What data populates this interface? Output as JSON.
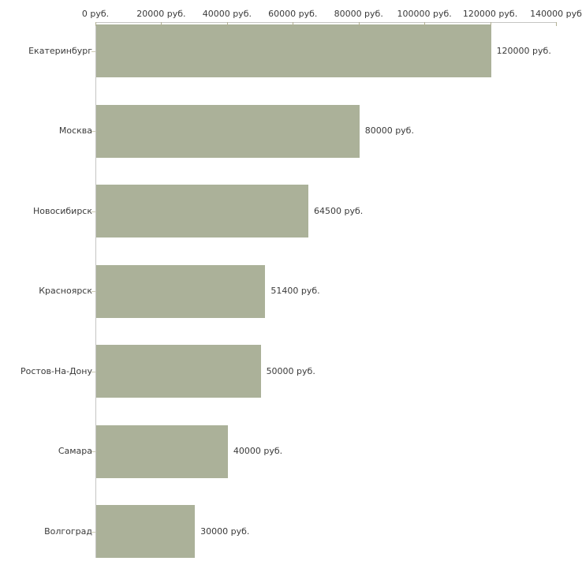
{
  "chart_data": {
    "type": "bar",
    "orientation": "horizontal",
    "title": "",
    "xlabel": "",
    "ylabel": "",
    "categories": [
      "Екатеринбург",
      "Москва",
      "Новосибирск",
      "Красноярск",
      "Ростов-На-Дону",
      "Самара",
      "Волгоград"
    ],
    "values": [
      120000,
      80000,
      64500,
      51400,
      50000,
      40000,
      30000
    ],
    "value_labels": [
      "120000 руб.",
      "80000 руб.",
      "64500 руб.",
      "51400 руб.",
      "50000 руб.",
      "40000 руб.",
      "30000 руб."
    ],
    "x_ticks": [
      "0 руб.",
      "20000 руб.",
      "40000 руб.",
      "60000 руб.",
      "80000 руб.",
      "100000 руб.",
      "120000 руб.",
      "140000 руб"
    ],
    "x_tick_values": [
      0,
      20000,
      40000,
      60000,
      80000,
      100000,
      120000,
      140000
    ],
    "xlim": [
      0,
      140000
    ],
    "grid": false,
    "legend": false,
    "axis_position": "top",
    "colors": {
      "bar": "#abb199",
      "axis_line": "#c5c5c3",
      "tick_mark": "#b2b093",
      "category_tick": "#cfcdb6",
      "text": "#3a3a3a",
      "background": "#ffffff"
    }
  }
}
